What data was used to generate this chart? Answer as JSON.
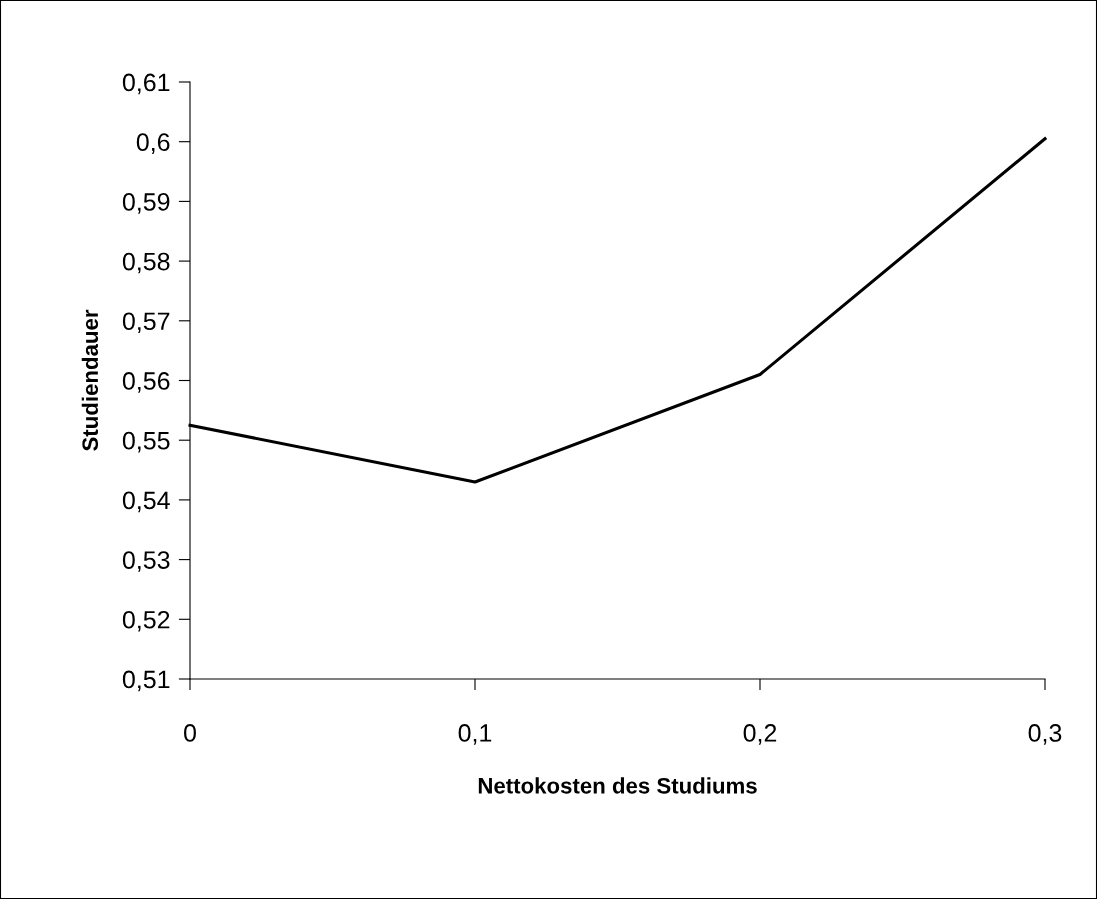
{
  "chart_data": {
    "type": "line",
    "xlabel": "Nettokosten des Studiums",
    "ylabel": "Studiendauer",
    "categories": [
      "0",
      "0,1",
      "0,2",
      "0,3"
    ],
    "series": [
      {
        "color": "#000000",
        "values": [
          0.5525,
          0.543,
          0.561,
          0.6005
        ]
      }
    ],
    "ylim": [
      0.51,
      0.61
    ],
    "yticks": [
      {
        "value": 0.51,
        "label": "0,51"
      },
      {
        "value": 0.52,
        "label": "0,52"
      },
      {
        "value": 0.53,
        "label": "0,53"
      },
      {
        "value": 0.54,
        "label": "0,54"
      },
      {
        "value": 0.55,
        "label": "0,55"
      },
      {
        "value": 0.56,
        "label": "0,56"
      },
      {
        "value": 0.57,
        "label": "0,57"
      },
      {
        "value": 0.58,
        "label": "0,58"
      },
      {
        "value": 0.59,
        "label": "0,59"
      },
      {
        "value": 0.6,
        "label": "0,6"
      },
      {
        "value": 0.61,
        "label": "0,61"
      }
    ],
    "grid": false,
    "legend": false,
    "marker": "none",
    "line_style": "solid"
  }
}
